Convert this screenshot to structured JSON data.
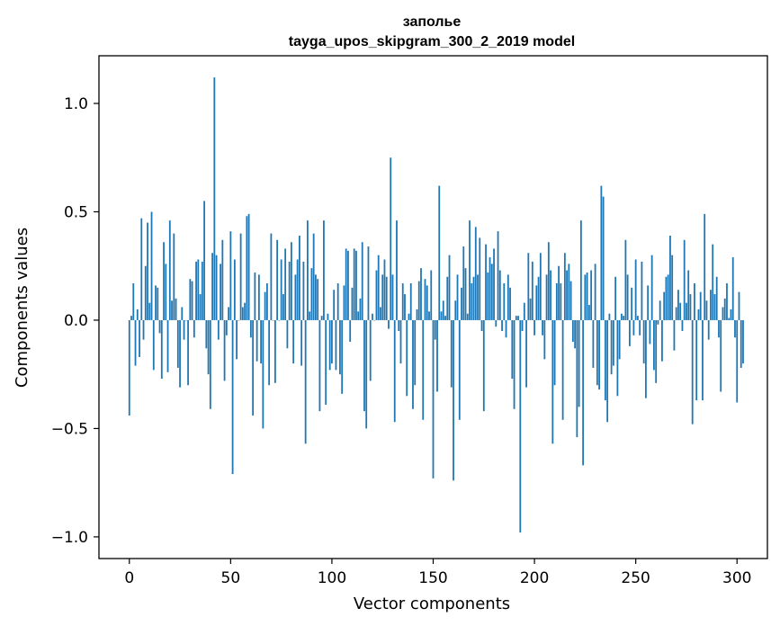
{
  "chart_data": {
    "type": "bar",
    "title_line1": "заполье",
    "title_line2": "tayga_upos_skipgram_300_2_2019 model",
    "xlabel": "Vector components",
    "ylabel": "Components values",
    "xlim": [
      -15,
      315
    ],
    "ylim": [
      -1.1,
      1.22
    ],
    "xticks": [
      {
        "value": 0,
        "label": "0"
      },
      {
        "value": 50,
        "label": "50"
      },
      {
        "value": 100,
        "label": "100"
      },
      {
        "value": 150,
        "label": "150"
      },
      {
        "value": 200,
        "label": "200"
      },
      {
        "value": 250,
        "label": "250"
      },
      {
        "value": 300,
        "label": "300"
      }
    ],
    "yticks": [
      {
        "value": -1.0,
        "label": "−1.0"
      },
      {
        "value": -0.5,
        "label": "−0.5"
      },
      {
        "value": 0.0,
        "label": "0.0"
      },
      {
        "value": 0.5,
        "label": "0.5"
      },
      {
        "value": 1.0,
        "label": "1.0"
      }
    ],
    "bar_color": "#1f77b4",
    "values": [
      -0.44,
      0.02,
      0.17,
      -0.21,
      0.05,
      -0.17,
      0.47,
      -0.09,
      0.25,
      0.45,
      0.08,
      0.5,
      -0.23,
      0.16,
      0.15,
      -0.06,
      -0.27,
      0.36,
      0.26,
      -0.24,
      0.46,
      0.09,
      0.4,
      0.1,
      -0.22,
      -0.31,
      0.06,
      -0.09,
      0.0,
      -0.3,
      0.19,
      0.18,
      -0.08,
      0.27,
      0.28,
      0.12,
      0.27,
      0.55,
      -0.13,
      -0.25,
      -0.41,
      0.31,
      1.12,
      0.3,
      -0.09,
      0.26,
      0.37,
      -0.28,
      -0.07,
      0.06,
      0.41,
      -0.71,
      0.28,
      -0.18,
      0.0,
      0.4,
      0.06,
      0.08,
      0.48,
      0.49,
      -0.08,
      -0.44,
      0.22,
      -0.19,
      0.21,
      -0.2,
      -0.5,
      0.13,
      0.17,
      -0.3,
      0.4,
      0.0,
      -0.29,
      0.37,
      0.0,
      0.28,
      0.12,
      0.33,
      -0.13,
      0.27,
      0.36,
      -0.2,
      0.21,
      0.28,
      0.39,
      -0.21,
      0.27,
      -0.57,
      0.46,
      0.04,
      0.24,
      0.4,
      0.21,
      0.19,
      -0.42,
      0.02,
      0.46,
      -0.39,
      0.03,
      -0.23,
      -0.2,
      0.14,
      -0.23,
      0.17,
      -0.25,
      -0.34,
      0.16,
      0.33,
      0.32,
      -0.1,
      0.15,
      0.33,
      0.32,
      0.04,
      0.1,
      0.36,
      -0.42,
      -0.5,
      0.34,
      -0.28,
      0.03,
      0.0,
      0.23,
      0.3,
      0.06,
      0.21,
      0.28,
      0.2,
      -0.04,
      0.75,
      0.21,
      -0.47,
      0.46,
      -0.05,
      -0.2,
      0.17,
      0.12,
      -0.35,
      0.03,
      0.17,
      -0.41,
      -0.3,
      0.05,
      0.18,
      0.24,
      -0.46,
      0.19,
      0.16,
      0.04,
      0.23,
      -0.73,
      -0.09,
      -0.33,
      0.62,
      0.04,
      0.09,
      0.02,
      0.2,
      0.3,
      -0.31,
      -0.74,
      0.09,
      0.21,
      -0.46,
      0.15,
      0.34,
      0.24,
      0.03,
      0.46,
      0.17,
      0.2,
      0.43,
      0.21,
      0.38,
      -0.05,
      -0.42,
      0.35,
      0.22,
      0.29,
      0.26,
      0.33,
      -0.03,
      0.41,
      0.23,
      -0.05,
      0.17,
      -0.08,
      0.21,
      0.15,
      -0.27,
      -0.41,
      0.02,
      0.02,
      -0.98,
      -0.05,
      0.08,
      -0.31,
      0.31,
      0.1,
      0.27,
      -0.07,
      0.16,
      0.2,
      0.31,
      -0.07,
      -0.18,
      0.21,
      0.36,
      0.23,
      -0.57,
      -0.3,
      0.17,
      0.25,
      0.17,
      -0.46,
      0.31,
      0.23,
      0.26,
      0.18,
      -0.1,
      -0.13,
      -0.54,
      -0.4,
      0.46,
      -0.67,
      0.21,
      0.22,
      0.07,
      0.23,
      -0.22,
      0.26,
      -0.3,
      -0.32,
      0.62,
      0.57,
      -0.37,
      -0.47,
      0.03,
      -0.25,
      -0.21,
      0.2,
      -0.35,
      -0.18,
      0.03,
      0.02,
      0.37,
      0.21,
      -0.12,
      0.15,
      -0.07,
      0.28,
      0.02,
      -0.07,
      0.27,
      -0.2,
      -0.36,
      0.16,
      -0.11,
      0.3,
      -0.23,
      -0.29,
      -0.02,
      0.09,
      -0.19,
      0.13,
      0.2,
      0.21,
      0.39,
      0.3,
      -0.14,
      0.06,
      0.14,
      0.08,
      -0.05,
      0.37,
      0.08,
      0.23,
      0.12,
      -0.48,
      0.17,
      -0.37,
      0.05,
      0.13,
      -0.37,
      0.49,
      0.09,
      -0.09,
      0.14,
      0.35,
      0.12,
      0.2,
      -0.08,
      -0.33,
      0.06,
      0.1,
      0.17,
      0.01,
      0.05,
      0.29,
      -0.08,
      -0.38,
      0.13,
      -0.22,
      -0.2
    ]
  }
}
